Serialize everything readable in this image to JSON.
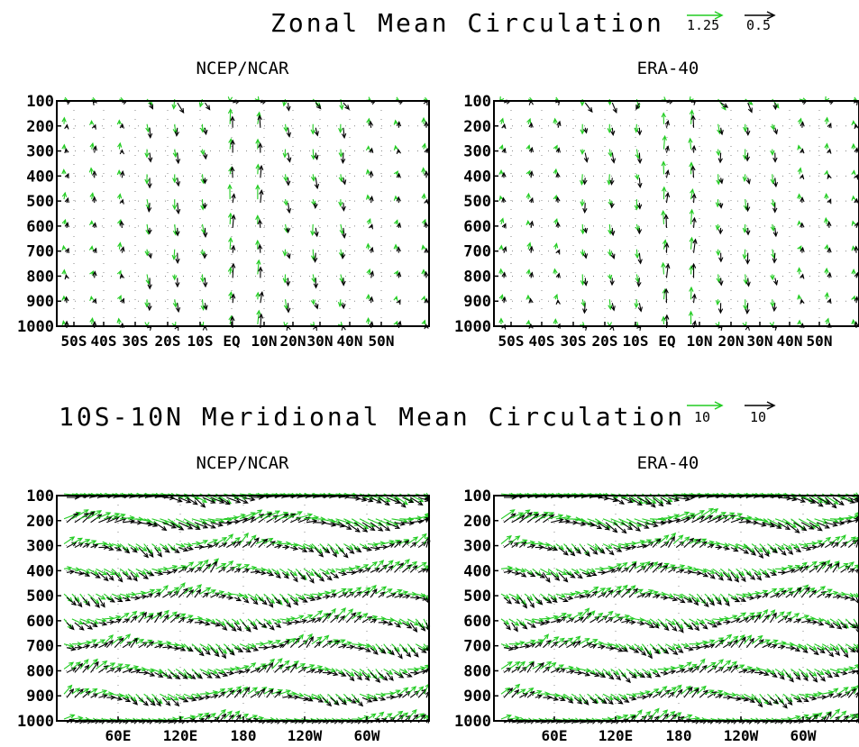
{
  "sections": [
    {
      "title": "Zonal Mean Circulation",
      "legend": [
        {
          "value": "1.25",
          "color": "#22cc22"
        },
        {
          "value": "0.5",
          "color": "#000000"
        }
      ]
    },
    {
      "title": "10S-10N Meridional Mean Circulation",
      "legend": [
        {
          "value": "10",
          "color": "#22cc22"
        },
        {
          "value": "10",
          "color": "#000000"
        }
      ]
    }
  ],
  "colors": {
    "reanalysis_a": "#22cc22",
    "reanalysis_b": "#000000"
  },
  "chart_data": [
    {
      "type": "vector",
      "title": "NCEP/NCAR",
      "section": "Zonal Mean Circulation",
      "ylabel": "",
      "y_ticks": [
        "100",
        "200",
        "300",
        "400",
        "500",
        "600",
        "700",
        "800",
        "900",
        "1000"
      ],
      "x_ticks": [
        "50S",
        "40S",
        "30S",
        "20S",
        "10S",
        "EQ",
        "10N",
        "20N",
        "30N",
        "40N",
        "50N"
      ],
      "y_range": [
        1000,
        100
      ],
      "x_range": [
        -60,
        60
      ],
      "grid": true
    },
    {
      "type": "vector",
      "title": "ERA-40",
      "section": "Zonal Mean Circulation",
      "ylabel": "",
      "y_ticks": [
        "100",
        "200",
        "300",
        "400",
        "500",
        "600",
        "700",
        "800",
        "900",
        "1000"
      ],
      "x_ticks": [
        "50S",
        "40S",
        "30S",
        "20S",
        "10S",
        "EQ",
        "10N",
        "20N",
        "30N",
        "40N",
        "50N"
      ],
      "y_range": [
        1000,
        100
      ],
      "x_range": [
        -60,
        60
      ],
      "grid": true
    },
    {
      "type": "vector",
      "title": "NCEP/NCAR",
      "section": "10S-10N Meridional Mean Circulation",
      "ylabel": "",
      "y_ticks": [
        "100",
        "200",
        "300",
        "400",
        "500",
        "600",
        "700",
        "800",
        "900",
        "1000"
      ],
      "x_ticks": [
        "60E",
        "120E",
        "180",
        "120W",
        "60W"
      ],
      "y_range": [
        1000,
        100
      ],
      "x_range": [
        0,
        360
      ],
      "grid": true
    },
    {
      "type": "vector",
      "title": "ERA-40",
      "section": "10S-10N Meridional Mean Circulation",
      "ylabel": "",
      "y_ticks": [
        "100",
        "200",
        "300",
        "400",
        "500",
        "600",
        "700",
        "800",
        "900",
        "1000"
      ],
      "x_ticks": [
        "60E",
        "120E",
        "180",
        "120W",
        "60W"
      ],
      "y_range": [
        1000,
        100
      ],
      "x_range": [
        0,
        360
      ],
      "grid": true
    }
  ]
}
